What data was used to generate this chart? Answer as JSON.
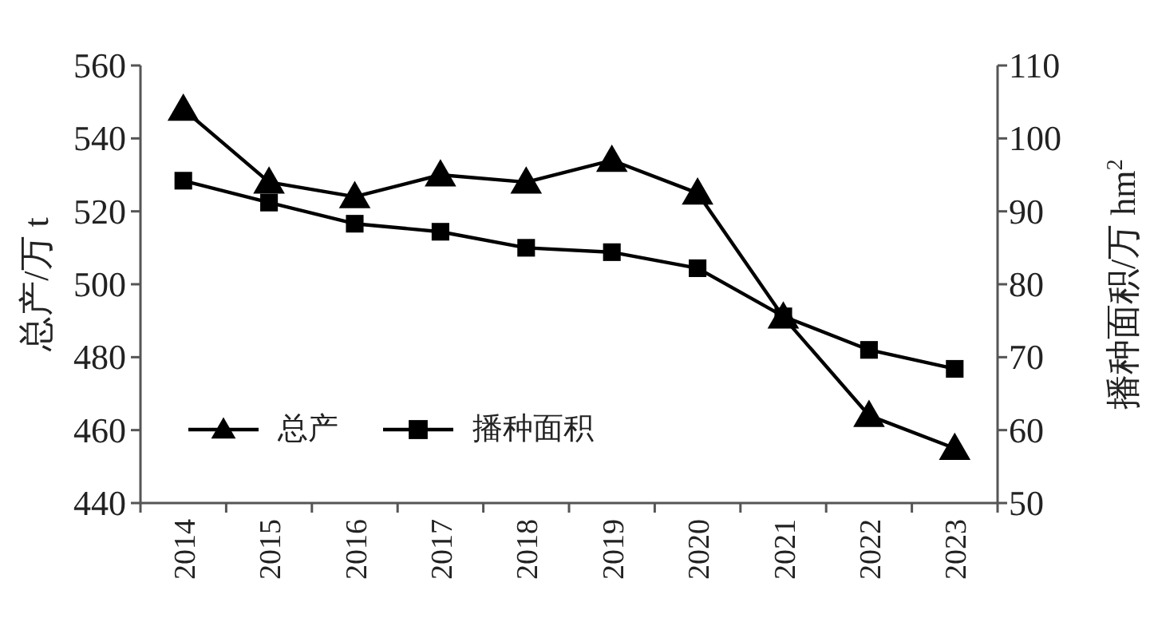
{
  "chart_data": {
    "type": "line",
    "categories": [
      "2014",
      "2015",
      "2016",
      "2017",
      "2018",
      "2019",
      "2020",
      "2021",
      "2022",
      "2023"
    ],
    "ylabel": "总产/万 t",
    "y2label": "播种面积/万 hm$^{2}$",
    "ylim": [
      440,
      560
    ],
    "yticks": [
      440,
      460,
      480,
      500,
      520,
      540,
      560
    ],
    "y2lim": [
      50,
      110
    ],
    "y2ticks": [
      50,
      60,
      70,
      80,
      90,
      100,
      110
    ],
    "grid": false,
    "legend": "bottom left",
    "line_style": "solid",
    "series": [
      {
        "name": "总产",
        "color": "#000000",
        "marker": "triangle",
        "values": [
          548,
          528,
          524,
          530,
          528,
          534,
          525,
          491,
          464,
          455
        ]
      },
      {
        "name": "播种面积",
        "color": "#000000",
        "marker": "square",
        "axis": "y2",
        "values": [
          94.2,
          91.2,
          88.3,
          87.2,
          85.0,
          84.4,
          82.2,
          75.6,
          71.0,
          68.4
        ]
      }
    ]
  }
}
